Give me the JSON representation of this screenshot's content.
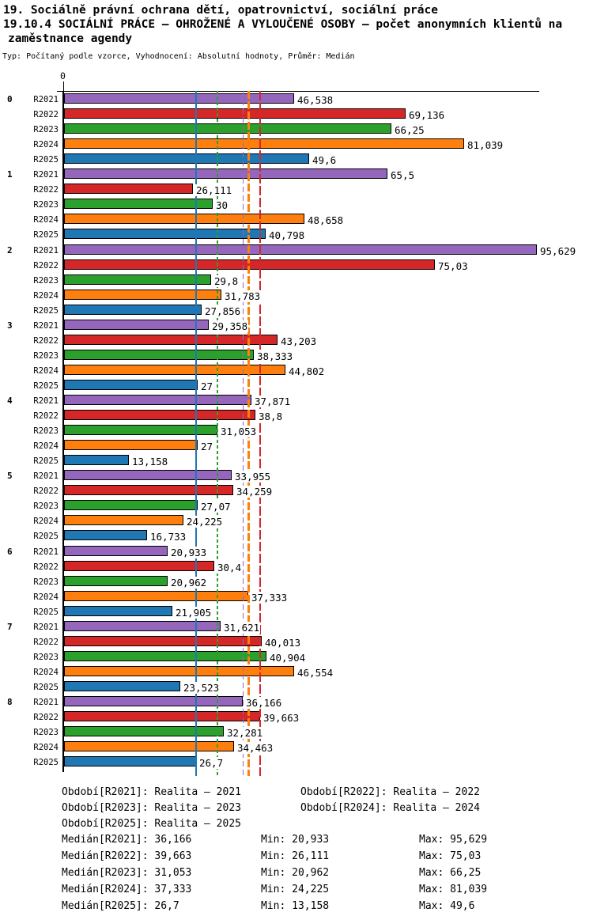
{
  "chart_data": {
    "type": "bar",
    "orientation": "horizontal",
    "title": "19. Sociálně právní ochrana dětí, opatrovnictví, sociální práce",
    "subtitle": [
      "19.10.4 SOCIÁLNÍ PRÁCE – OHROŽENÉ A VYLOUČENÉ OSOBY – počet anonymních klientů na",
      "zaměstnance agendy"
    ],
    "meta": "Typ: Počítaný podle vzorce, Vyhodnocení: Absolutní hodnoty, Průměr: Medián",
    "zero_label": "0",
    "xlim": [
      0,
      95.629
    ],
    "categories": [
      "0",
      "1",
      "2",
      "3",
      "4",
      "5",
      "6",
      "7",
      "8"
    ],
    "series": [
      {
        "name": "R2021",
        "color": "#9467bd",
        "median": 36.166,
        "values": [
          46.538,
          65.5,
          95.629,
          29.358,
          37.871,
          33.955,
          20.933,
          31.621,
          36.166
        ],
        "displays": [
          "46,538",
          "65,5",
          "95,629",
          "29,358",
          "37,871",
          "33,955",
          "20,933",
          "31,621",
          "36,166"
        ]
      },
      {
        "name": "R2022",
        "color": "#d62728",
        "median": 39.663,
        "values": [
          69.136,
          26.111,
          75.03,
          43.203,
          38.8,
          34.259,
          30.4,
          40.013,
          39.663
        ],
        "displays": [
          "69,136",
          "26,111",
          "75,03",
          "43,203",
          "38,8",
          "34,259",
          "30,4",
          "40,013",
          "39,663"
        ]
      },
      {
        "name": "R2023",
        "color": "#2ca02c",
        "median": 31.053,
        "values": [
          66.25,
          30,
          29.8,
          38.333,
          31.053,
          27.07,
          20.962,
          40.904,
          32.281
        ],
        "displays": [
          "66,25",
          "30",
          "29,8",
          "38,333",
          "31,053",
          "27,07",
          "20,962",
          "40,904",
          "32,281"
        ]
      },
      {
        "name": "R2024",
        "color": "#ff7f0e",
        "median": 37.333,
        "values": [
          81.039,
          48.658,
          31.783,
          44.802,
          27,
          24.225,
          37.333,
          46.554,
          34.463
        ],
        "displays": [
          "81,039",
          "48,658",
          "31,783",
          "44,802",
          "27",
          "24,225",
          "37,333",
          "46,554",
          "34,463"
        ]
      },
      {
        "name": "R2025",
        "color": "#1f77b4",
        "median": 26.7,
        "values": [
          49.6,
          40.798,
          27.856,
          27,
          13.158,
          16.733,
          21.905,
          23.523,
          26.7
        ],
        "displays": [
          "49,6",
          "40,798",
          "27,856",
          "27",
          "13,158",
          "16,733",
          "21,905",
          "23,523",
          "26,7"
        ]
      }
    ],
    "legend_items": [
      "Období[R2021]: Realita – 2021",
      "Období[R2022]: Realita – 2022",
      "Období[R2023]: Realita – 2023",
      "Období[R2024]: Realita – 2024",
      "Období[R2025]: Realita – 2025"
    ],
    "stats_rows": [
      {
        "median": "Medián[R2021]: 36,166",
        "min": "Min: 20,933",
        "max": "Max: 95,629"
      },
      {
        "median": "Medián[R2022]: 39,663",
        "min": "Min: 26,111",
        "max": "Max: 75,03"
      },
      {
        "median": "Medián[R2023]: 31,053",
        "min": "Min: 20,962",
        "max": "Max: 66,25"
      },
      {
        "median": "Medián[R2024]: 37,333",
        "min": "Min: 24,225",
        "max": "Max: 81,039"
      },
      {
        "median": "Medián[R2025]: 26,7",
        "min": "Min: 13,158",
        "max": "Max: 49,6"
      }
    ]
  }
}
